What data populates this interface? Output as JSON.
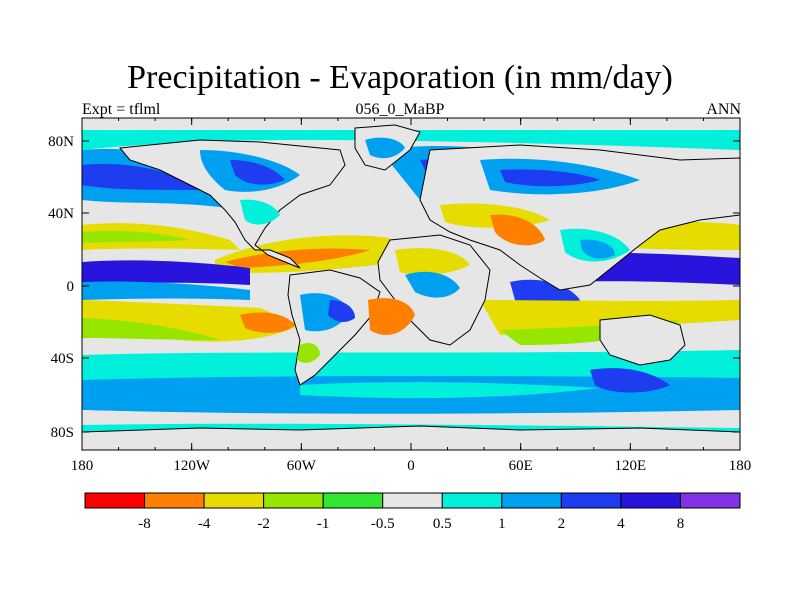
{
  "header": {
    "title": "Precipitation - Evaporation (in mm/day)",
    "left_subtitle": "Expt = tflml",
    "center_subtitle": "056_0_MaBP",
    "right_subtitle": "ANN"
  },
  "map": {
    "x_ticks": [
      "180",
      "120W",
      "60W",
      "0",
      "60E",
      "120E",
      "180"
    ],
    "y_ticks": [
      "80N",
      "40N",
      "0",
      "40S",
      "80S"
    ]
  },
  "colorbar": {
    "labels": [
      "-8",
      "-4",
      "-2",
      "-1",
      "-0.5",
      "0.5",
      "1",
      "2",
      "4",
      "8"
    ],
    "colors": [
      "#ff0000",
      "#ff8000",
      "#e6dc00",
      "#96e600",
      "#32e632",
      "#e6e6e6",
      "#00f0dc",
      "#00a0f0",
      "#1e3cf0",
      "#2814dc",
      "#8232e6"
    ]
  }
}
